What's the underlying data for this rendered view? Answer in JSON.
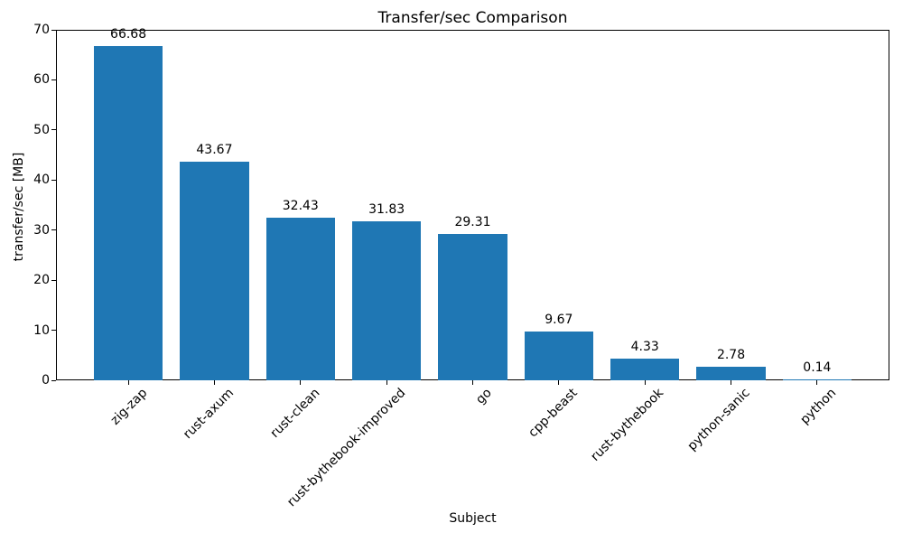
{
  "chart_data": {
    "type": "bar",
    "title": "Transfer/sec Comparison",
    "xlabel": "Subject",
    "ylabel": "transfer/sec [MB]",
    "categories": [
      "zig-zap",
      "rust-axum",
      "rust-clean",
      "rust-bythebook-improved",
      "go",
      "cpp-beast",
      "rust-bythebook",
      "python-sanic",
      "python"
    ],
    "values": [
      66.68,
      43.67,
      32.43,
      31.83,
      29.31,
      9.67,
      4.33,
      2.78,
      0.14
    ],
    "value_labels": [
      "66.68",
      "43.67",
      "32.43",
      "31.83",
      "29.31",
      "9.67",
      "4.33",
      "2.78",
      "0.14"
    ],
    "bar_color": "#1f77b4",
    "axis_color": "#000000",
    "ylim": [
      0,
      70
    ],
    "yticks": [
      0,
      10,
      20,
      30,
      40,
      50,
      60,
      70
    ],
    "grid": false,
    "legend": null
  }
}
